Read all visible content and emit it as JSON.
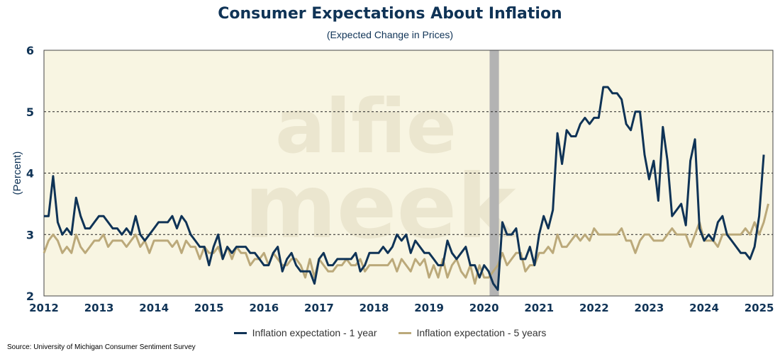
{
  "title": "Consumer Expectations About Inflation",
  "subtitle": "(Expected Change in Prices)",
  "source": "Source: University of Michigan Consumer Sentiment Survey",
  "watermark": [
    "alfie",
    "meek"
  ],
  "colors": {
    "plot_background": "#f8f5e2",
    "series_1y": "#0f3356",
    "series_5y": "#bba97a",
    "recession_band": "#b3b3b3",
    "axis_text": "#0f3356"
  },
  "chart_data": {
    "type": "line",
    "ylabel": "(Percent)",
    "xlabel": "",
    "ylim": [
      2,
      6
    ],
    "xlim": [
      2012.0,
      2025.25
    ],
    "yticks": [
      2,
      3,
      4,
      5,
      6
    ],
    "xticks": [
      2012,
      2013,
      2014,
      2015,
      2016,
      2017,
      2018,
      2019,
      2020,
      2021,
      2022,
      2023,
      2024,
      2025
    ],
    "grid": "dashed horizontal at 3, 4 and 5",
    "legend_position": "bottom-center",
    "recession_shading": {
      "start": 2020.1,
      "end": 2020.27
    },
    "series": [
      {
        "name": "Inflation expectation - 1 year",
        "color": "#0f3356",
        "start": 2012.0,
        "step": 0.083333,
        "values": [
          3.3,
          3.3,
          3.95,
          3.2,
          3.0,
          3.1,
          3.0,
          3.6,
          3.3,
          3.1,
          3.1,
          3.2,
          3.3,
          3.3,
          3.2,
          3.1,
          3.1,
          3.0,
          3.1,
          3.0,
          3.3,
          3.0,
          2.9,
          3.0,
          3.1,
          3.2,
          3.2,
          3.2,
          3.3,
          3.1,
          3.3,
          3.2,
          3.0,
          2.9,
          2.8,
          2.8,
          2.5,
          2.8,
          3.0,
          2.6,
          2.8,
          2.7,
          2.8,
          2.8,
          2.8,
          2.7,
          2.7,
          2.6,
          2.5,
          2.5,
          2.7,
          2.8,
          2.4,
          2.6,
          2.7,
          2.5,
          2.4,
          2.4,
          2.4,
          2.2,
          2.6,
          2.7,
          2.5,
          2.5,
          2.6,
          2.6,
          2.6,
          2.6,
          2.7,
          2.4,
          2.5,
          2.7,
          2.7,
          2.7,
          2.8,
          2.7,
          2.8,
          3.0,
          2.9,
          3.0,
          2.7,
          2.9,
          2.8,
          2.7,
          2.7,
          2.6,
          2.5,
          2.5,
          2.9,
          2.7,
          2.6,
          2.7,
          2.8,
          2.5,
          2.5,
          2.3,
          2.5,
          2.4,
          2.2,
          2.1,
          3.2,
          3.0,
          3.0,
          3.1,
          2.6,
          2.6,
          2.8,
          2.5,
          3.0,
          3.3,
          3.1,
          3.4,
          4.65,
          4.15,
          4.7,
          4.6,
          4.6,
          4.8,
          4.9,
          4.8,
          4.9,
          4.9,
          5.4,
          5.4,
          5.3,
          5.3,
          5.2,
          4.8,
          4.7,
          5.0,
          5.0,
          4.3,
          3.9,
          4.2,
          3.55,
          4.75,
          4.2,
          3.3,
          3.4,
          3.5,
          3.15,
          4.2,
          4.55,
          3.1,
          2.9,
          3.0,
          2.9,
          3.2,
          3.3,
          3.0,
          2.9,
          2.8,
          2.7,
          2.7,
          2.6,
          2.8,
          3.3,
          4.3
        ]
      },
      {
        "name": "Inflation expectation - 5 years",
        "color": "#bba97a",
        "start": 2012.0,
        "step": 0.083333,
        "values": [
          2.7,
          2.9,
          3.0,
          2.9,
          2.7,
          2.8,
          2.7,
          3.0,
          2.8,
          2.7,
          2.8,
          2.9,
          2.9,
          3.0,
          2.8,
          2.9,
          2.9,
          2.9,
          2.8,
          2.9,
          3.0,
          2.8,
          2.9,
          2.7,
          2.9,
          2.9,
          2.9,
          2.9,
          2.8,
          2.9,
          2.7,
          2.9,
          2.8,
          2.8,
          2.6,
          2.8,
          2.7,
          2.7,
          2.8,
          2.6,
          2.8,
          2.6,
          2.8,
          2.7,
          2.7,
          2.5,
          2.6,
          2.6,
          2.7,
          2.5,
          2.7,
          2.6,
          2.5,
          2.5,
          2.6,
          2.6,
          2.5,
          2.3,
          2.6,
          2.3,
          2.6,
          2.5,
          2.4,
          2.4,
          2.5,
          2.5,
          2.6,
          2.5,
          2.5,
          2.6,
          2.4,
          2.5,
          2.5,
          2.5,
          2.5,
          2.5,
          2.6,
          2.4,
          2.6,
          2.5,
          2.4,
          2.6,
          2.5,
          2.6,
          2.3,
          2.5,
          2.3,
          2.6,
          2.3,
          2.5,
          2.6,
          2.4,
          2.3,
          2.5,
          2.2,
          2.5,
          2.3,
          2.3,
          2.4,
          2.5,
          2.7,
          2.5,
          2.6,
          2.7,
          2.7,
          2.4,
          2.5,
          2.5,
          2.7,
          2.7,
          2.8,
          2.7,
          3.0,
          2.8,
          2.8,
          2.9,
          3.0,
          2.9,
          3.0,
          2.9,
          3.1,
          3.0,
          3.0,
          3.0,
          3.0,
          3.0,
          3.1,
          2.9,
          2.9,
          2.7,
          2.9,
          3.0,
          3.0,
          2.9,
          2.9,
          2.9,
          3.0,
          3.1,
          3.0,
          3.0,
          3.0,
          2.8,
          3.0,
          3.2,
          2.9,
          2.9,
          2.9,
          2.8,
          3.0,
          3.0,
          3.0,
          3.0,
          3.0,
          3.1,
          3.0,
          3.2,
          3.0,
          3.2,
          3.5
        ]
      }
    ]
  }
}
